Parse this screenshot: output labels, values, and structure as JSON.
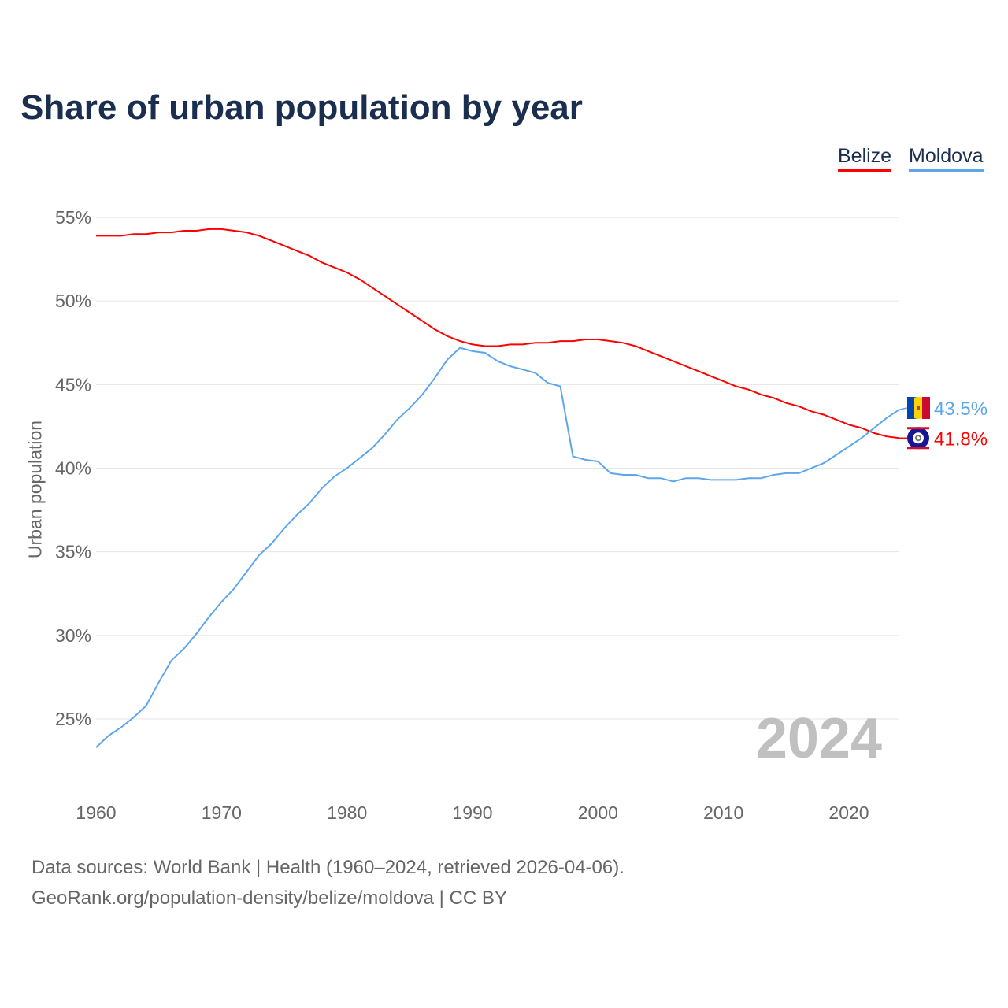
{
  "chart_data": {
    "type": "line",
    "title": "Share of urban population by year",
    "ylabel": "Urban population",
    "xlabel": "",
    "ylim": [
      21.5,
      56
    ],
    "xlim": [
      1960,
      2024
    ],
    "yticks": [
      25,
      30,
      35,
      40,
      45,
      50,
      55
    ],
    "ytick_labels": [
      "25%",
      "30%",
      "35%",
      "40%",
      "45%",
      "50%",
      "55%"
    ],
    "xticks": [
      1960,
      1970,
      1980,
      1990,
      2000,
      2010,
      2020
    ],
    "grid": true,
    "legend_position": "top-right",
    "current_year_label": "2024",
    "x": [
      1960,
      1961,
      1962,
      1963,
      1964,
      1965,
      1966,
      1967,
      1968,
      1969,
      1970,
      1971,
      1972,
      1973,
      1974,
      1975,
      1976,
      1977,
      1978,
      1979,
      1980,
      1981,
      1982,
      1983,
      1984,
      1985,
      1986,
      1987,
      1988,
      1989,
      1990,
      1991,
      1992,
      1993,
      1994,
      1995,
      1996,
      1997,
      1998,
      1999,
      2000,
      2001,
      2002,
      2003,
      2004,
      2005,
      2006,
      2007,
      2008,
      2009,
      2010,
      2011,
      2012,
      2013,
      2014,
      2015,
      2016,
      2017,
      2018,
      2019,
      2020,
      2021,
      2022,
      2023,
      2024
    ],
    "series": [
      {
        "name": "Belize",
        "color": "#ff0000",
        "end_label": "41.8%",
        "flag": "belize-flag",
        "values": [
          53.9,
          53.9,
          53.9,
          54.0,
          54.0,
          54.1,
          54.1,
          54.2,
          54.2,
          54.3,
          54.3,
          54.2,
          54.1,
          53.9,
          53.6,
          53.3,
          53.0,
          52.7,
          52.3,
          52.0,
          51.7,
          51.3,
          50.8,
          50.3,
          49.8,
          49.3,
          48.8,
          48.3,
          47.9,
          47.6,
          47.4,
          47.3,
          47.3,
          47.4,
          47.4,
          47.5,
          47.5,
          47.6,
          47.6,
          47.7,
          47.7,
          47.6,
          47.5,
          47.3,
          47.0,
          46.7,
          46.4,
          46.1,
          45.8,
          45.5,
          45.2,
          44.9,
          44.7,
          44.4,
          44.2,
          43.9,
          43.7,
          43.4,
          43.2,
          42.9,
          42.6,
          42.4,
          42.1,
          41.9,
          41.8
        ]
      },
      {
        "name": "Moldova",
        "color": "#5ea6ec",
        "end_label": "43.5%",
        "flag": "moldova-flag",
        "values": [
          23.3,
          24.0,
          24.5,
          25.1,
          25.8,
          27.2,
          28.5,
          29.2,
          30.1,
          31.1,
          32.0,
          32.8,
          33.8,
          34.8,
          35.5,
          36.4,
          37.2,
          37.9,
          38.8,
          39.5,
          40.0,
          40.6,
          41.2,
          42.0,
          42.9,
          43.6,
          44.4,
          45.4,
          46.5,
          47.2,
          47.0,
          46.9,
          46.4,
          46.1,
          45.9,
          45.7,
          45.1,
          44.9,
          40.7,
          40.5,
          40.4,
          39.7,
          39.6,
          39.6,
          39.4,
          39.4,
          39.2,
          39.4,
          39.4,
          39.3,
          39.3,
          39.3,
          39.4,
          39.4,
          39.6,
          39.7,
          39.7,
          40.0,
          40.3,
          40.8,
          41.3,
          41.8,
          42.4,
          43.0,
          43.5
        ]
      }
    ]
  },
  "footer": {
    "line1": "Data sources: World Bank | Health (1960–2024, retrieved 2026-04-06).",
    "line2": "GeoRank.org/population-density/belize/moldova | CC BY"
  }
}
